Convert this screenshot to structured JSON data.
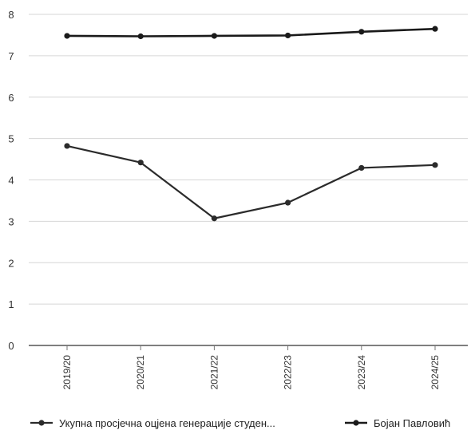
{
  "chart_data": {
    "type": "line",
    "categories": [
      "2019/20",
      "2020/21",
      "2021/22",
      "2022/23",
      "2023/24",
      "2024/25"
    ],
    "series": [
      {
        "name": "Укупна просјечна оцјена генерације студен...",
        "values": [
          4.82,
          4.42,
          3.07,
          3.45,
          4.29,
          4.36
        ],
        "color": "#2b2b2b"
      },
      {
        "name": "Бојан Павловић",
        "values": [
          7.48,
          7.47,
          7.48,
          7.49,
          7.58,
          7.65
        ],
        "color": "#1a1a1a"
      }
    ],
    "ylim": [
      0,
      8
    ],
    "yticks": [
      "0",
      "1",
      "2",
      "3",
      "4",
      "5",
      "6",
      "7",
      "8"
    ],
    "grid": true,
    "legend": "bottom",
    "title": "",
    "xlabel": "",
    "ylabel": ""
  }
}
